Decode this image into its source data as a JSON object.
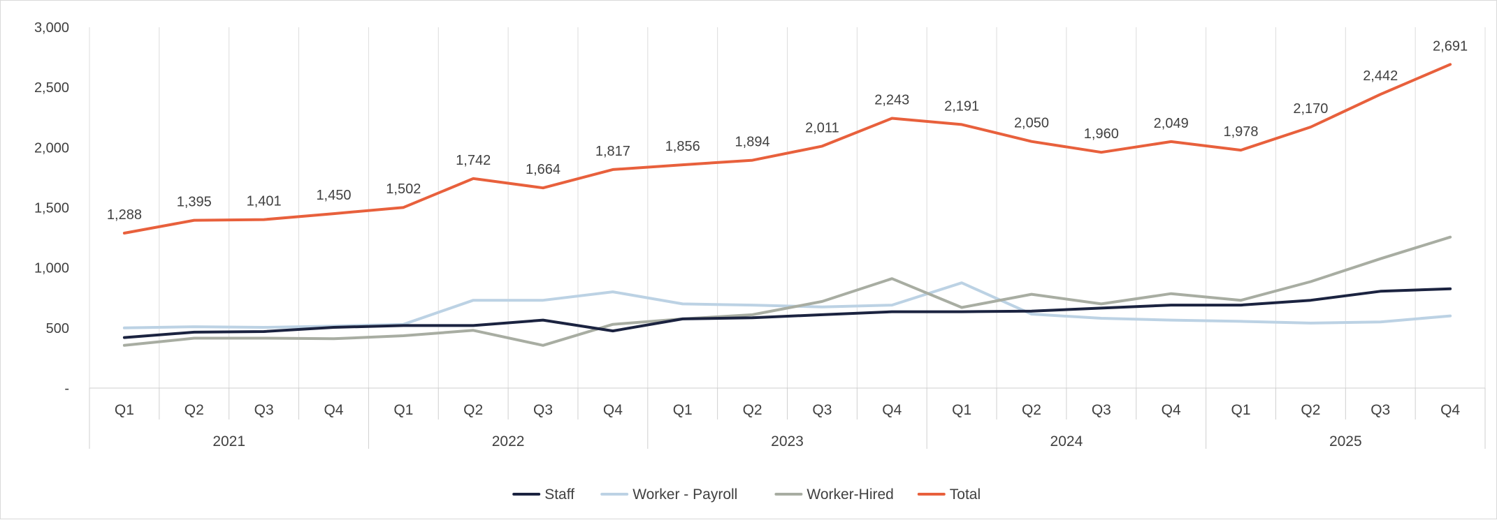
{
  "chart_data": {
    "type": "line",
    "title": "",
    "xlabel": "",
    "ylabel": "",
    "ylim": [
      0,
      3000
    ],
    "yticks": [
      0,
      500,
      1000,
      1500,
      2000,
      2500,
      3000
    ],
    "ytick_labels": [
      "-",
      "500",
      "1,000",
      "1,500",
      "2,000",
      "2,500",
      "3,000"
    ],
    "grid": "vertical",
    "legend_position": "bottom",
    "years": [
      "2021",
      "2022",
      "2023",
      "2024",
      "2025"
    ],
    "categories": [
      "Q1",
      "Q2",
      "Q3",
      "Q4",
      "Q1",
      "Q2",
      "Q3",
      "Q4",
      "Q1",
      "Q2",
      "Q3",
      "Q4",
      "Q1",
      "Q2",
      "Q3",
      "Q4",
      "Q1",
      "Q2",
      "Q3",
      "Q4"
    ],
    "series": [
      {
        "name": "Staff",
        "color": "#1b2340",
        "values": [
          420,
          465,
          470,
          505,
          520,
          520,
          565,
          475,
          575,
          585,
          610,
          635,
          635,
          640,
          665,
          690,
          690,
          730,
          805,
          825
        ]
      },
      {
        "name": "Worker - Payroll",
        "color": "#bcd2e4",
        "values": [
          500,
          510,
          505,
          515,
          530,
          730,
          730,
          800,
          700,
          690,
          675,
          690,
          875,
          615,
          580,
          565,
          555,
          540,
          550,
          600
        ]
      },
      {
        "name": "Worker-Hired",
        "color": "#a8ada2",
        "values": [
          355,
          415,
          415,
          410,
          435,
          480,
          355,
          530,
          575,
          610,
          720,
          910,
          670,
          780,
          700,
          785,
          730,
          885,
          1075,
          1255
        ]
      },
      {
        "name": "Total",
        "color": "#e8603c",
        "values": [
          1288,
          1395,
          1401,
          1450,
          1502,
          1742,
          1664,
          1817,
          1856,
          1894,
          2011,
          2243,
          2191,
          2050,
          1960,
          2049,
          1978,
          2170,
          2442,
          2691
        ],
        "data_labels": [
          "1,288",
          "1,395",
          "1,401",
          "1,450",
          "1,502",
          "1,742",
          "1,664",
          "1,817",
          "1,856",
          "1,894",
          "2,011",
          "2,243",
          "2,191",
          "2,050",
          "1,960",
          "2,049",
          "1,978",
          "2,170",
          "2,442",
          "2,691"
        ]
      }
    ]
  }
}
